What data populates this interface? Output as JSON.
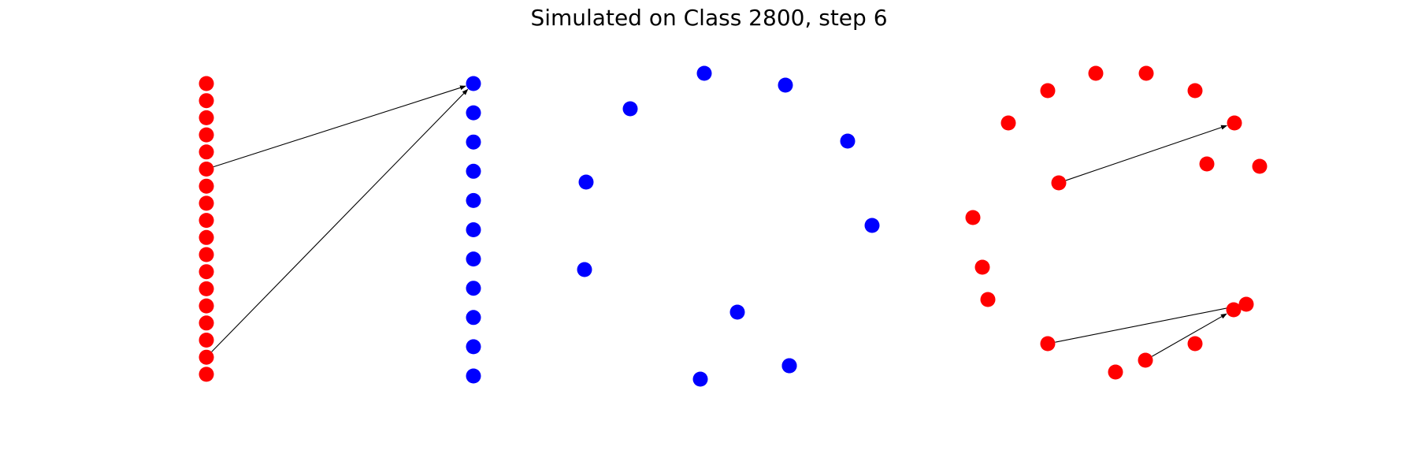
{
  "title": "Simulated on Class 2800, step 6",
  "colors": {
    "red": "#ff0000",
    "blue": "#0000ff",
    "edge": "#000000"
  },
  "graphs": [
    {
      "id": "bipartite",
      "nodes": [
        {
          "id": "r0",
          "color": "red"
        },
        {
          "id": "r1",
          "color": "red"
        },
        {
          "id": "r2",
          "color": "red"
        },
        {
          "id": "r3",
          "color": "red"
        },
        {
          "id": "r4",
          "color": "red"
        },
        {
          "id": "r5",
          "color": "red"
        },
        {
          "id": "r6",
          "color": "red"
        },
        {
          "id": "r7",
          "color": "red"
        },
        {
          "id": "r8",
          "color": "red"
        },
        {
          "id": "r9",
          "color": "red"
        },
        {
          "id": "r10",
          "color": "red"
        },
        {
          "id": "r11",
          "color": "red"
        },
        {
          "id": "r12",
          "color": "red"
        },
        {
          "id": "r13",
          "color": "red"
        },
        {
          "id": "r14",
          "color": "red"
        },
        {
          "id": "r15",
          "color": "red"
        },
        {
          "id": "r16",
          "color": "red"
        },
        {
          "id": "r17",
          "color": "red"
        },
        {
          "id": "b0",
          "color": "blue"
        },
        {
          "id": "b1",
          "color": "blue"
        },
        {
          "id": "b2",
          "color": "blue"
        },
        {
          "id": "b3",
          "color": "blue"
        },
        {
          "id": "b4",
          "color": "blue"
        },
        {
          "id": "b5",
          "color": "blue"
        },
        {
          "id": "b6",
          "color": "blue"
        },
        {
          "id": "b7",
          "color": "blue"
        },
        {
          "id": "b8",
          "color": "blue"
        },
        {
          "id": "b9",
          "color": "blue"
        },
        {
          "id": "b10",
          "color": "blue"
        }
      ],
      "edges": [
        {
          "from": "r5",
          "to": "b0"
        },
        {
          "from": "r16",
          "to": "b0"
        }
      ]
    },
    {
      "id": "blue-ring",
      "nodes": [
        {
          "id": "c0",
          "color": "blue"
        },
        {
          "id": "c1",
          "color": "blue"
        },
        {
          "id": "c2",
          "color": "blue"
        },
        {
          "id": "c3",
          "color": "blue"
        },
        {
          "id": "c4",
          "color": "blue"
        },
        {
          "id": "c5",
          "color": "blue"
        },
        {
          "id": "c6",
          "color": "blue"
        },
        {
          "id": "c7",
          "color": "blue"
        },
        {
          "id": "c8",
          "color": "blue"
        },
        {
          "id": "c9",
          "color": "blue"
        },
        {
          "id": "c10",
          "color": "blue"
        }
      ],
      "edges": []
    },
    {
      "id": "red-ring",
      "nodes": [
        {
          "id": "d0",
          "color": "red"
        },
        {
          "id": "d1",
          "color": "red"
        },
        {
          "id": "d2",
          "color": "red"
        },
        {
          "id": "d3",
          "color": "red"
        },
        {
          "id": "d4",
          "color": "red"
        },
        {
          "id": "d5",
          "color": "red"
        },
        {
          "id": "d6",
          "color": "red"
        },
        {
          "id": "d7",
          "color": "red"
        },
        {
          "id": "d8",
          "color": "red"
        },
        {
          "id": "d9",
          "color": "red"
        },
        {
          "id": "d10",
          "color": "red"
        },
        {
          "id": "d11",
          "color": "red"
        },
        {
          "id": "d12",
          "color": "red"
        },
        {
          "id": "d13",
          "color": "red"
        },
        {
          "id": "d14",
          "color": "red"
        },
        {
          "id": "d15",
          "color": "red"
        },
        {
          "id": "d16",
          "color": "red"
        },
        {
          "id": "d17",
          "color": "red"
        }
      ],
      "edges": [
        {
          "from": "d12",
          "to": "d5"
        },
        {
          "from": "d10",
          "to": "d17"
        },
        {
          "from": "d13",
          "to": "d16"
        }
      ]
    }
  ]
}
